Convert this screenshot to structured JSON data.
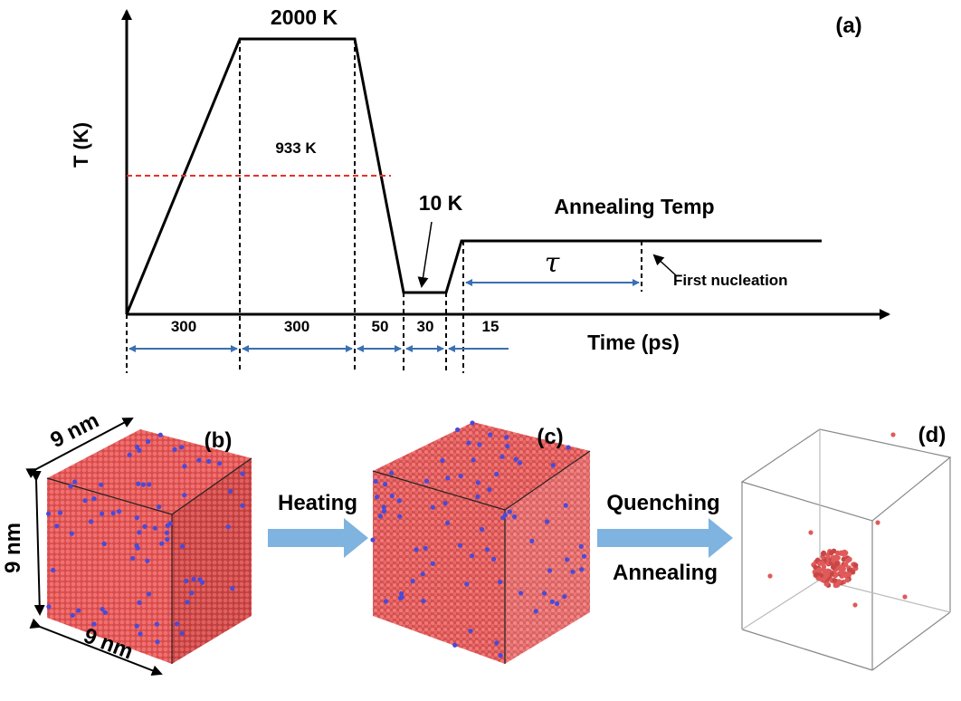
{
  "panel_a": {
    "label": "(a)",
    "y_axis_label": "T (K)",
    "x_axis_label": "Time (ps)",
    "peak_label": "2000 K",
    "melting_label": "933 K",
    "low_label": "10 K",
    "anneal_label": "Annealing Temp",
    "tau_label": "τ",
    "nucleation_label": "First nucleation",
    "durations": [
      "300",
      "300",
      "50",
      "30",
      "15"
    ],
    "colors": {
      "melting_line": "#e8302a",
      "arrows": "#3a6fb3",
      "curve": "#000000"
    }
  },
  "panel_b": {
    "label": "(b)",
    "dim_top": "9 nm",
    "dim_left": "9 nm",
    "dim_bottom": "9 nm"
  },
  "panel_c": {
    "label": "(c)"
  },
  "panel_d": {
    "label": "(d)"
  },
  "arrow_1": {
    "label": "Heating"
  },
  "arrow_2": {
    "label_top": "Quenching",
    "label_bottom": "Annealing"
  },
  "colors": {
    "atom_red": "#e05a5a",
    "atom_blue": "#4a4ad8",
    "process_arrow": "#7fb3e0"
  }
}
